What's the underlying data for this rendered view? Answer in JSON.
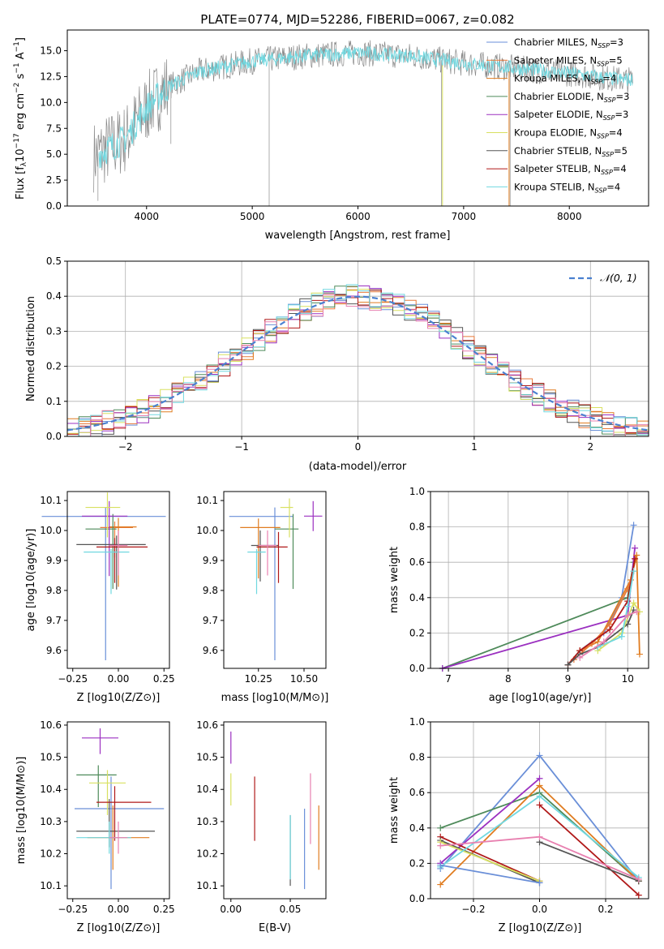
{
  "figure_title": "PLATE=0774, MJD=52286, FIBERID=0067, z=0.082",
  "colors": {
    "Chabrier MILES": "#6a8fd8",
    "Salpeter MILES": "#e87a3a",
    "Kroupa MILES": "#e07c20",
    "Chabrier ELODIE": "#4e8a5a",
    "Salpeter ELODIE": "#9b30c0",
    "Kroupa ELODIE": "#d8e060",
    "Chabrier STELIB": "#555555",
    "Salpeter STELIB": "#b01818",
    "Kroupa STELIB": "#70d8e0",
    "pink": "#e880b0",
    "gaussian": "#4a80d0",
    "grid": "#b0b0b0"
  },
  "chart_data": [
    {
      "id": "spectrum",
      "type": "line",
      "title": "PLATE=0774, MJD=52286, FIBERID=0067, z=0.082",
      "xlabel": "wavelength [Angstrom, rest frame]",
      "ylabel": "Flux [f_λ 10^-17 erg cm^-2 s^-1 A^-1]",
      "xlim": [
        3250,
        8750
      ],
      "ylim": [
        0,
        17
      ],
      "xticks": [
        "4000",
        "5000",
        "6000",
        "7000",
        "8000"
      ],
      "yticks": [
        "0.0",
        "2.5",
        "5.0",
        "7.5",
        "10.0",
        "12.5",
        "15.0"
      ],
      "legend_position": "top-right",
      "legend": [
        {
          "imf": "Chabrier",
          "lib": "MILES",
          "n": "3"
        },
        {
          "imf": "Salpeter",
          "lib": "MILES",
          "n": "5"
        },
        {
          "imf": "Kroupa",
          "lib": "MILES",
          "n": "4"
        },
        {
          "imf": "Chabrier",
          "lib": "ELODIE",
          "n": "3"
        },
        {
          "imf": "Salpeter",
          "lib": "ELODIE",
          "n": "3"
        },
        {
          "imf": "Kroupa",
          "lib": "ELODIE",
          "n": "4"
        },
        {
          "imf": "Chabrier",
          "lib": "STELIB",
          "n": "5"
        },
        {
          "imf": "Salpeter",
          "lib": "STELIB",
          "n": "4"
        },
        {
          "imf": "Kroupa",
          "lib": "STELIB",
          "n": "4"
        }
      ],
      "continuum_x": [
        3500,
        3800,
        4000,
        4200,
        4500,
        5000,
        5500,
        6000,
        6500,
        7000,
        7500,
        8000,
        8500
      ],
      "continuum_y": [
        4.8,
        6.5,
        9.5,
        11.5,
        13.0,
        14.0,
        14.5,
        14.8,
        14.5,
        13.8,
        13.3,
        12.8,
        12.2
      ]
    },
    {
      "id": "residuals",
      "type": "step",
      "xlabel": "(data-model)/error",
      "ylabel": "Normed distribution",
      "xlim": [
        -2.5,
        2.5
      ],
      "ylim": [
        0,
        0.5
      ],
      "xticks": [
        "-2",
        "-1",
        "0",
        "1",
        "2"
      ],
      "yticks": [
        "0.0",
        "0.1",
        "0.2",
        "0.3",
        "0.4",
        "0.5"
      ],
      "legend": "N(0,1)",
      "legend_position": "top-right",
      "bin_width": 0.1
    },
    {
      "id": "age-vs-Z",
      "type": "errorbar",
      "xlabel": "Z [log10(Z/Z⊙)]",
      "ylabel": "age [log10(age/yr)]",
      "xlim": [
        -0.28,
        0.28
      ],
      "ylim": [
        9.54,
        10.13
      ],
      "xticks": [
        -0.25,
        0.0,
        0.25
      ],
      "xtick_labels": [
        "-0.25",
        "0.00",
        "0.25"
      ],
      "yticks": [
        9.6,
        9.7,
        9.8,
        9.9,
        10.0,
        10.1
      ],
      "ytick_labels": [
        "9.6",
        "9.7",
        "9.8",
        "9.9",
        "10.0",
        "10.1"
      ],
      "points": [
        {
          "c": "Chabrier MILES",
          "x": -0.07,
          "y": 10.047,
          "xerr": [
            0.35,
            0.33
          ],
          "yerr": [
            0.48,
            0.03
          ]
        },
        {
          "c": "Salpeter MILES",
          "x": -0.02,
          "y": 10.01,
          "xerr": [
            0.08,
            0.1
          ],
          "yerr": [
            0.1,
            0.02
          ]
        },
        {
          "c": "Kroupa MILES",
          "x": 0.0,
          "y": 10.012,
          "xerr": [
            0.05,
            0.1
          ],
          "yerr": [
            0.2,
            0.03
          ]
        },
        {
          "c": "Chabrier ELODIE",
          "x": -0.03,
          "y": 10.005,
          "xerr": [
            0.15,
            0.02
          ],
          "yerr": [
            0.2,
            0.05
          ]
        },
        {
          "c": "Salpeter ELODIE",
          "x": -0.05,
          "y": 10.048,
          "xerr": [
            0.15,
            0.1
          ],
          "yerr": [
            0.2,
            0.05
          ]
        },
        {
          "c": "Kroupa ELODIE",
          "x": -0.06,
          "y": 10.077,
          "xerr": [
            0.12,
            0.07
          ],
          "yerr": [
            0.1,
            0.05
          ]
        },
        {
          "c": "Chabrier STELIB",
          "x": -0.01,
          "y": 9.953,
          "xerr": [
            0.22,
            0.16
          ],
          "yerr": [
            0.15,
            0.03
          ]
        },
        {
          "c": "Salpeter STELIB",
          "x": -0.02,
          "y": 9.945,
          "xerr": [
            0.1,
            0.18
          ],
          "yerr": [
            0.12,
            0.03
          ]
        },
        {
          "c": "Kroupa STELIB",
          "x": -0.04,
          "y": 9.928,
          "xerr": [
            0.15,
            0.1
          ],
          "yerr": [
            0.14,
            0.01
          ]
        },
        {
          "c": "pink",
          "x": 0.0,
          "y": 9.95,
          "xerr": [
            0.05,
            0.05
          ],
          "yerr": [
            0.1,
            0.05
          ]
        }
      ]
    },
    {
      "id": "age-vs-mass",
      "type": "errorbar",
      "xlabel": "mass [log10(M/M⊙)]",
      "xlim": [
        10.06,
        10.62
      ],
      "ylim": [
        9.54,
        10.13
      ],
      "xticks": [
        10.25,
        10.5
      ],
      "xtick_labels": [
        "10.25",
        "10.50"
      ],
      "yticks": [
        9.6,
        9.7,
        9.8,
        9.9,
        10.0,
        10.1
      ],
      "ytick_labels": [
        "9.6",
        "9.7",
        "9.8",
        "9.9",
        "10.0",
        "10.1"
      ],
      "points": [
        {
          "c": "Chabrier MILES",
          "x": 10.34,
          "y": 10.047,
          "xerr": [
            0.25,
            0.1
          ],
          "yerr": [
            0.48,
            0.03
          ]
        },
        {
          "c": "Kroupa MILES",
          "x": 10.25,
          "y": 10.01,
          "xerr": [
            0.1,
            0.12
          ],
          "yerr": [
            0.17,
            0.03
          ]
        },
        {
          "c": "Chabrier ELODIE",
          "x": 10.44,
          "y": 10.005,
          "xerr": [
            0.1,
            0.03
          ],
          "yerr": [
            0.2,
            0.05
          ]
        },
        {
          "c": "Salpeter ELODIE",
          "x": 10.55,
          "y": 10.048,
          "xerr": [
            0.05,
            0.05
          ],
          "yerr": [
            0.05,
            0.05
          ]
        },
        {
          "c": "Kroupa ELODIE",
          "x": 10.42,
          "y": 10.077,
          "xerr": [
            0.05,
            0.02
          ],
          "yerr": [
            0.1,
            0.03
          ]
        },
        {
          "c": "Chabrier STELIB",
          "x": 10.26,
          "y": 9.95,
          "xerr": [
            0.05,
            0.1
          ],
          "yerr": [
            0.12,
            0.05
          ]
        },
        {
          "c": "Salpeter STELIB",
          "x": 10.36,
          "y": 9.945,
          "xerr": [
            0.12,
            0.05
          ],
          "yerr": [
            0.12,
            0.05
          ]
        },
        {
          "c": "Kroupa STELIB",
          "x": 10.24,
          "y": 9.928,
          "xerr": [
            0.05,
            0.05
          ],
          "yerr": [
            0.14,
            0.01
          ]
        },
        {
          "c": "pink",
          "x": 10.3,
          "y": 9.95,
          "xerr": [
            0.05,
            0.05
          ],
          "yerr": [
            0.1,
            0.05
          ]
        }
      ]
    },
    {
      "id": "weight-vs-age",
      "type": "line",
      "xlabel": "age [log10(age/yr)]",
      "ylabel": "mass weight",
      "xlim": [
        6.7,
        10.35
      ],
      "ylim": [
        0,
        1.0
      ],
      "xticks": [
        7,
        8,
        9,
        10
      ],
      "xtick_labels": [
        "7",
        "8",
        "9",
        "10"
      ],
      "yticks": [
        0.0,
        0.2,
        0.4,
        0.6,
        0.8,
        1.0
      ],
      "ytick_labels": [
        "0.0",
        "0.2",
        "0.4",
        "0.6",
        "0.8",
        "1.0"
      ],
      "series": [
        {
          "c": "Chabrier ELODIE",
          "x": [
            6.9,
            10.0,
            10.1
          ],
          "y": [
            0.0,
            0.4,
            0.6
          ]
        },
        {
          "c": "Salpeter ELODIE",
          "x": [
            6.9,
            10.0,
            10.12
          ],
          "y": [
            0.0,
            0.3,
            0.68
          ]
        },
        {
          "c": "Chabrier MILES",
          "x": [
            9.0,
            9.2,
            9.6,
            9.9,
            10.1
          ],
          "y": [
            0.02,
            0.1,
            0.2,
            0.4,
            0.81
          ]
        },
        {
          "c": "Kroupa MILES",
          "x": [
            9.0,
            9.2,
            9.5,
            10.05,
            10.15,
            10.2
          ],
          "y": [
            0.02,
            0.1,
            0.15,
            0.5,
            0.64,
            0.08
          ]
        },
        {
          "c": "Salpeter MILES",
          "x": [
            9.1,
            9.4,
            9.7,
            10.0,
            10.1
          ],
          "y": [
            0.05,
            0.14,
            0.25,
            0.45,
            0.55
          ]
        },
        {
          "c": "Salpeter STELIB",
          "x": [
            9.0,
            9.2,
            9.7,
            10.0,
            10.12
          ],
          "y": [
            0.02,
            0.1,
            0.22,
            0.38,
            0.62
          ]
        },
        {
          "c": "Chabrier STELIB",
          "x": [
            9.0,
            9.2,
            9.5,
            10.0,
            10.1
          ],
          "y": [
            0.02,
            0.08,
            0.12,
            0.25,
            0.33
          ]
        },
        {
          "c": "Kroupa ELODIE",
          "x": [
            9.5,
            9.9,
            10.1,
            10.2
          ],
          "y": [
            0.1,
            0.2,
            0.37,
            0.32
          ]
        },
        {
          "c": "Kroupa STELIB",
          "x": [
            9.5,
            9.9,
            10.0,
            10.1
          ],
          "y": [
            0.12,
            0.18,
            0.35,
            0.55
          ]
        },
        {
          "c": "pink",
          "x": [
            9.2,
            9.6,
            10.0,
            10.15
          ],
          "y": [
            0.06,
            0.15,
            0.3,
            0.32
          ]
        }
      ]
    },
    {
      "id": "mass-vs-Z",
      "type": "errorbar",
      "xlabel": "Z [log10(Z/Z⊙)]",
      "ylabel": "mass [log10(M/M⊙)]",
      "xlim": [
        -0.28,
        0.28
      ],
      "ylim": [
        10.06,
        10.61
      ],
      "xticks": [
        -0.25,
        0.0,
        0.25
      ],
      "xtick_labels": [
        "-0.25",
        "0.00",
        "0.25"
      ],
      "yticks": [
        10.1,
        10.2,
        10.3,
        10.4,
        10.5,
        10.6
      ],
      "ytick_labels": [
        "10.1",
        "10.2",
        "10.3",
        "10.4",
        "10.5",
        "10.6"
      ],
      "points": [
        {
          "c": "Chabrier MILES",
          "x": -0.04,
          "y": 10.34,
          "xerr": [
            0.2,
            0.29
          ],
          "yerr": [
            0.25,
            0.1
          ]
        },
        {
          "c": "Kroupa MILES",
          "x": -0.03,
          "y": 10.25,
          "xerr": [
            0.14,
            0.2
          ],
          "yerr": [
            0.1,
            0.1
          ]
        },
        {
          "c": "Chabrier ELODIE",
          "x": -0.11,
          "y": 10.445,
          "xerr": [
            0.12,
            0.1
          ],
          "yerr": [
            0.1,
            0.03
          ]
        },
        {
          "c": "Salpeter ELODIE",
          "x": -0.1,
          "y": 10.56,
          "xerr": [
            0.1,
            0.1
          ],
          "yerr": [
            0.05,
            0.03
          ]
        },
        {
          "c": "Kroupa ELODIE",
          "x": -0.06,
          "y": 10.42,
          "xerr": [
            0.1,
            0.1
          ],
          "yerr": [
            0.1,
            0.04
          ]
        },
        {
          "c": "Chabrier STELIB",
          "x": -0.05,
          "y": 10.27,
          "xerr": [
            0.18,
            0.25
          ],
          "yerr": [
            0.05,
            0.1
          ]
        },
        {
          "c": "Salpeter STELIB",
          "x": -0.02,
          "y": 10.36,
          "xerr": [
            0.1,
            0.2
          ],
          "yerr": [
            0.12,
            0.05
          ]
        },
        {
          "c": "Kroupa STELIB",
          "x": -0.05,
          "y": 10.25,
          "xerr": [
            0.18,
            0.12
          ],
          "yerr": [
            0.05,
            0.05
          ]
        },
        {
          "c": "pink",
          "x": 0.0,
          "y": 10.25,
          "xerr": [
            0.05,
            0.05
          ],
          "yerr": [
            0.05,
            0.05
          ]
        }
      ]
    },
    {
      "id": "mass-vs-EBV",
      "type": "errorbar",
      "xlabel": "E(B-V)",
      "xlim": [
        -0.006,
        0.08
      ],
      "ylim": [
        10.06,
        10.61
      ],
      "xticks": [
        0.0,
        0.05
      ],
      "xtick_labels": [
        "0.00",
        "0.05"
      ],
      "yticks": [
        10.1,
        10.2,
        10.3,
        10.4,
        10.5,
        10.6
      ],
      "ytick_labels": [
        "10.1",
        "10.2",
        "10.3",
        "10.4",
        "10.5",
        "10.6"
      ],
      "points": [
        {
          "c": "Salpeter ELODIE",
          "x": 0.0,
          "y": 10.53,
          "xerr": [
            0,
            0
          ],
          "yerr": [
            0.05,
            0.05
          ]
        },
        {
          "c": "Kroupa ELODIE",
          "x": 0.0,
          "y": 10.4,
          "xerr": [
            0,
            0
          ],
          "yerr": [
            0.05,
            0.05
          ]
        },
        {
          "c": "Salpeter STELIB",
          "x": 0.02,
          "y": 10.34,
          "xerr": [
            0,
            0
          ],
          "yerr": [
            0.1,
            0.1
          ]
        },
        {
          "c": "Chabrier STELIB",
          "x": 0.05,
          "y": 10.22,
          "xerr": [
            0,
            0
          ],
          "yerr": [
            0.12,
            0.1
          ]
        },
        {
          "c": "Kroupa STELIB",
          "x": 0.05,
          "y": 10.22,
          "xerr": [
            0,
            0
          ],
          "yerr": [
            0.1,
            0.1
          ]
        },
        {
          "c": "Chabrier MILES",
          "x": 0.062,
          "y": 10.22,
          "xerr": [
            0,
            0
          ],
          "yerr": [
            0.13,
            0.12
          ]
        },
        {
          "c": "pink",
          "x": 0.067,
          "y": 10.33,
          "xerr": [
            0,
            0
          ],
          "yerr": [
            0.1,
            0.12
          ]
        },
        {
          "c": "Kroupa MILES",
          "x": 0.074,
          "y": 10.25,
          "xerr": [
            0,
            0
          ],
          "yerr": [
            0.1,
            0.1
          ]
        }
      ]
    },
    {
      "id": "weight-vs-Z",
      "type": "line",
      "xlabel": "Z [log10(Z/Z⊙)]",
      "ylabel": "mass weight",
      "xlim": [
        -0.33,
        0.33
      ],
      "ylim": [
        0,
        1.0
      ],
      "xticks": [
        -0.2,
        0.0,
        0.2
      ],
      "xtick_labels": [
        "-0.2",
        "0.0",
        "0.2"
      ],
      "yticks": [
        0.0,
        0.2,
        0.4,
        0.6,
        0.8,
        1.0
      ],
      "ytick_labels": [
        "0.0",
        "0.2",
        "0.4",
        "0.6",
        "0.8",
        "1.0"
      ],
      "series": [
        {
          "c": "Chabrier MILES",
          "x": [
            -0.3,
            0.0,
            0.3
          ],
          "y": [
            0.17,
            0.81,
            0.1
          ]
        },
        {
          "c": "Chabrier ELODIE",
          "x": [
            -0.3,
            0.0,
            0.3
          ],
          "y": [
            0.4,
            0.6,
            0.1
          ]
        },
        {
          "c": "Salpeter ELODIE",
          "x": [
            -0.3,
            0.0
          ],
          "y": [
            0.2,
            0.68
          ]
        },
        {
          "c": "Kroupa MILES",
          "x": [
            -0.3,
            0.0,
            0.3
          ],
          "y": [
            0.08,
            0.64,
            0.1
          ]
        },
        {
          "c": "Salpeter STELIB",
          "x": [
            -0.3,
            0.0
          ],
          "y": [
            0.35,
            0.1
          ]
        },
        {
          "c": "Salpeter STELIB",
          "x": [
            0.0,
            0.3
          ],
          "y": [
            0.53,
            0.02
          ]
        },
        {
          "c": "Chabrier STELIB",
          "x": [
            -0.3,
            0.0
          ],
          "y": [
            0.33,
            0.09
          ]
        },
        {
          "c": "Chabrier STELIB",
          "x": [
            0.0,
            0.3
          ],
          "y": [
            0.32,
            0.1
          ]
        },
        {
          "c": "Kroupa ELODIE",
          "x": [
            -0.3,
            0.0
          ],
          "y": [
            0.32,
            0.1
          ]
        },
        {
          "c": "Kroupa STELIB",
          "x": [
            -0.3,
            0.0,
            0.3
          ],
          "y": [
            0.18,
            0.58,
            0.12
          ]
        },
        {
          "c": "Chabrier MILES",
          "x": [
            -0.3,
            0.0
          ],
          "y": [
            0.19,
            0.09
          ]
        },
        {
          "c": "pink",
          "x": [
            -0.3,
            0.0,
            0.3
          ],
          "y": [
            0.3,
            0.35,
            0.11
          ]
        }
      ]
    }
  ]
}
